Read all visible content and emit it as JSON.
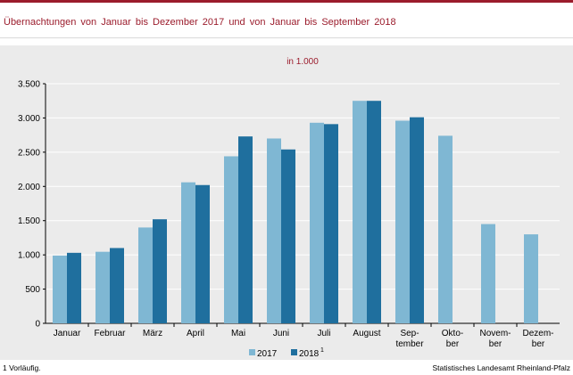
{
  "header": {
    "title": "Übernachtungen von Januar bis Dezember 2017 und von Januar bis September 2018"
  },
  "footer": {
    "footnote": "1 Vorläufig.",
    "source": "Statistisches Landesamt Rheinland-Pfalz"
  },
  "colors": {
    "accent": "#9b1c2c",
    "series_2017": "#7fb7d3",
    "series_2018": "#1f6f9e",
    "panel": "#ebebeb"
  },
  "chart_data": {
    "type": "bar",
    "title": "",
    "unit_label": "in 1.000",
    "xlabel": "",
    "ylabel": "",
    "categories": [
      "Januar",
      "Februar",
      "März",
      "April",
      "Mai",
      "Juni",
      "Juli",
      "August",
      "Sep-\ntember",
      "Okto-\nber",
      "Novem-\nber",
      "Dezem-\nber"
    ],
    "series": [
      {
        "name": "2017",
        "superscript": "",
        "values": [
          990,
          1045,
          1400,
          2060,
          2440,
          2700,
          2930,
          3250,
          2960,
          2740,
          1450,
          1300
        ]
      },
      {
        "name": "2018",
        "superscript": "1",
        "values": [
          1030,
          1100,
          1520,
          2020,
          2730,
          2540,
          2910,
          3250,
          3010,
          null,
          null,
          null
        ]
      }
    ],
    "ylim": [
      0,
      3500
    ],
    "yticks": [
      0,
      500,
      1000,
      1500,
      2000,
      2500,
      3000,
      3500
    ],
    "ytick_labels": [
      "0",
      "500",
      "1.000",
      "1.500",
      "2.000",
      "2.500",
      "3.000",
      "3.500"
    ],
    "grid": true,
    "legend_position": "bottom-center"
  }
}
